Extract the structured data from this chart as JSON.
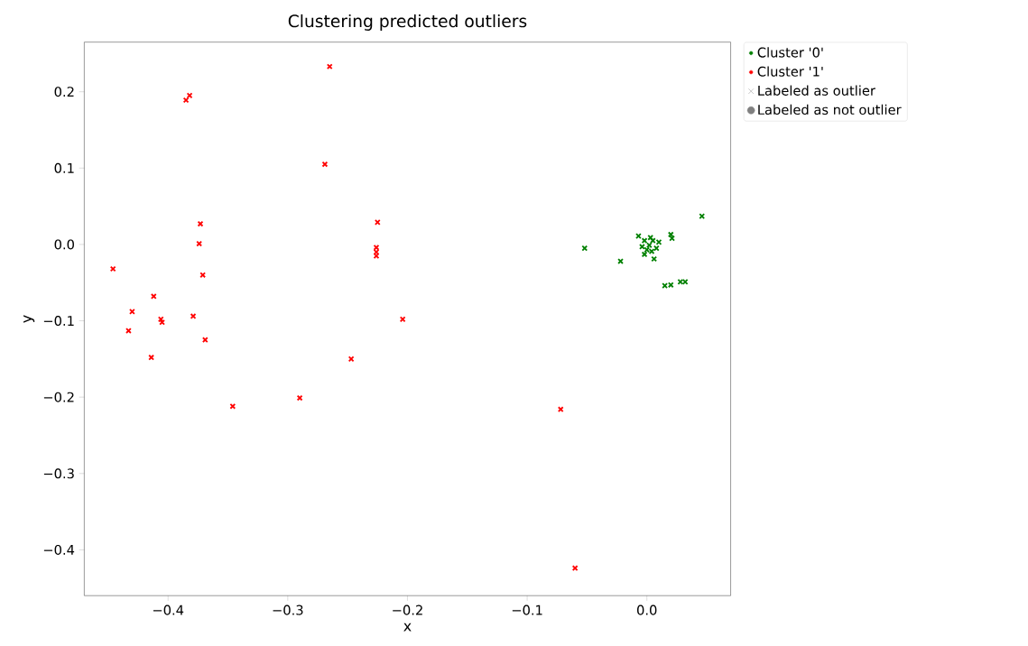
{
  "chart_data": {
    "type": "scatter",
    "title": "Clustering predicted outliers",
    "xlabel": "x",
    "ylabel": "y",
    "xlim": [
      -0.47,
      0.07
    ],
    "ylim": [
      -0.46,
      0.265
    ],
    "xticks": [
      {
        "value": -0.4,
        "label": "−0.4"
      },
      {
        "value": -0.3,
        "label": "−0.3"
      },
      {
        "value": -0.2,
        "label": "−0.2"
      },
      {
        "value": -0.1,
        "label": "−0.1"
      },
      {
        "value": 0.0,
        "label": "0.0"
      }
    ],
    "yticks": [
      {
        "value": -0.4,
        "label": "−0.4"
      },
      {
        "value": -0.3,
        "label": "−0.3"
      },
      {
        "value": -0.2,
        "label": "−0.2"
      },
      {
        "value": -0.1,
        "label": "−0.1"
      },
      {
        "value": 0.0,
        "label": "0.0"
      },
      {
        "value": 0.1,
        "label": "0.1"
      },
      {
        "value": 0.2,
        "label": "0.2"
      }
    ],
    "marker": "cross",
    "legend": "top right",
    "series": [
      {
        "name": "Cluster '0'",
        "color": "#008000",
        "x": [
          0.046,
          -0.052,
          -0.022,
          -0.007,
          0.02,
          0.021,
          0.006,
          -0.002,
          0.015,
          0.02,
          0.028,
          0.032,
          0.002,
          -0.002,
          0.005,
          0.01,
          0.0,
          0.004,
          -0.004,
          0.008,
          0.003
        ],
        "values": [
          0.037,
          -0.005,
          -0.022,
          0.011,
          0.013,
          0.008,
          -0.019,
          -0.013,
          -0.054,
          -0.053,
          -0.049,
          -0.049,
          -0.001,
          0.005,
          0.005,
          0.003,
          -0.007,
          -0.009,
          -0.003,
          -0.005,
          0.009
        ]
      },
      {
        "name": "Cluster '1'",
        "color": "#ff0000",
        "x": [
          -0.265,
          -0.382,
          -0.385,
          -0.269,
          -0.373,
          -0.225,
          -0.374,
          -0.226,
          -0.226,
          -0.226,
          -0.446,
          -0.371,
          -0.412,
          -0.43,
          -0.406,
          -0.405,
          -0.433,
          -0.379,
          -0.204,
          -0.369,
          -0.414,
          -0.247,
          -0.29,
          -0.346,
          -0.072,
          -0.06
        ],
        "values": [
          0.233,
          0.195,
          0.189,
          0.105,
          0.027,
          0.029,
          0.001,
          -0.004,
          -0.01,
          -0.015,
          -0.032,
          -0.04,
          -0.068,
          -0.088,
          -0.098,
          -0.102,
          -0.113,
          -0.094,
          -0.098,
          -0.125,
          -0.148,
          -0.15,
          -0.201,
          -0.212,
          -0.216,
          -0.424
        ]
      },
      {
        "name": "Labeled as outlier",
        "color": "#999999",
        "marker": "cross"
      },
      {
        "name": "Labeled as not outlier",
        "color": "#808080",
        "marker": "circle"
      }
    ]
  }
}
